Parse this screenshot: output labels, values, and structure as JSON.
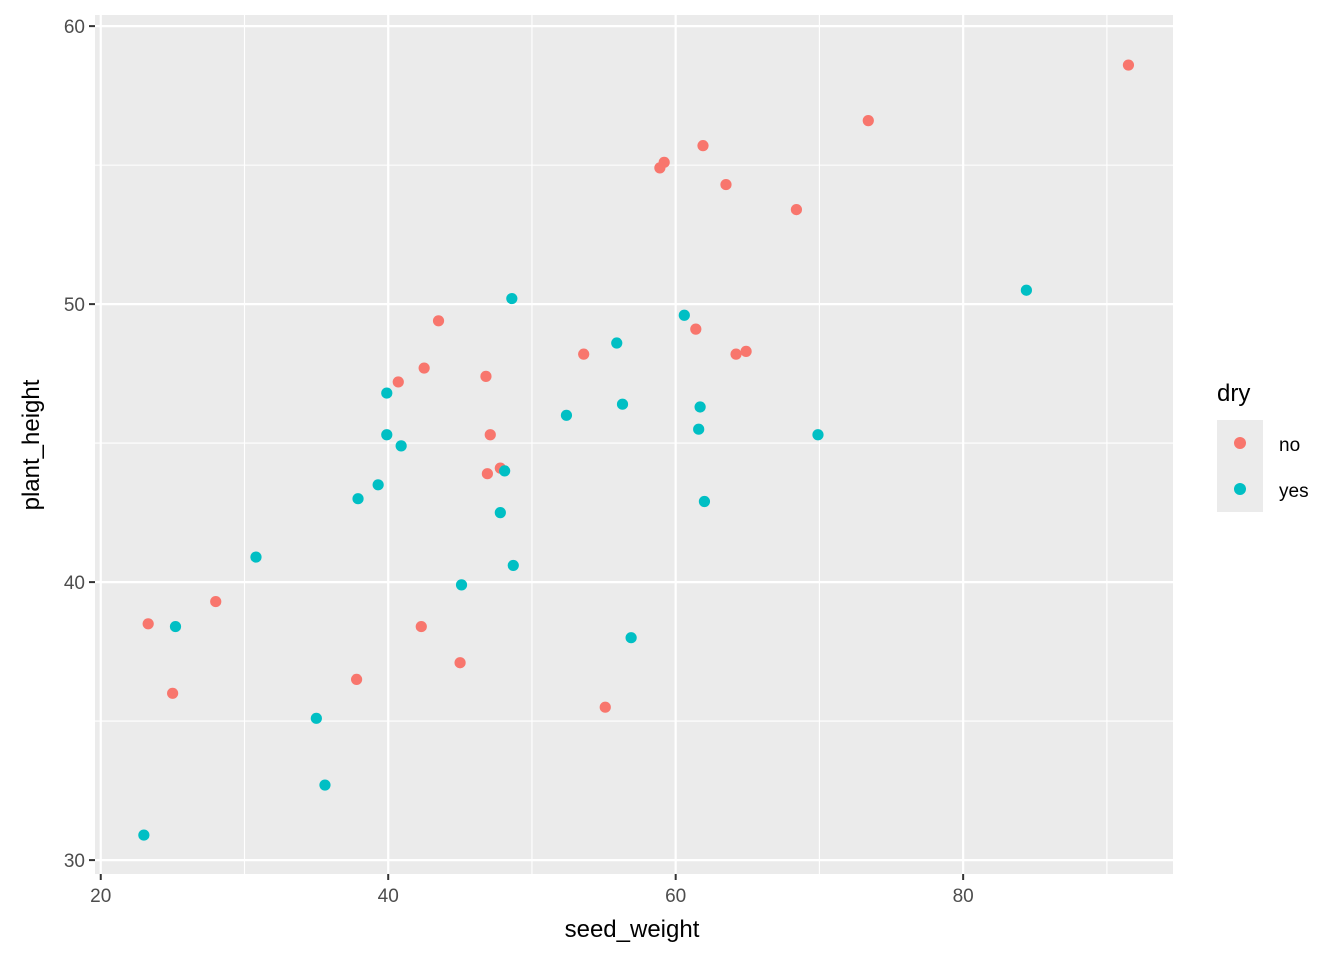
{
  "chart_data": {
    "type": "scatter",
    "xlabel": "seed_weight",
    "ylabel": "plant_height",
    "xlim": [
      19.6,
      94.6
    ],
    "ylim": [
      29.5,
      60.4
    ],
    "x_ticks": [
      20,
      40,
      60,
      80
    ],
    "y_ticks": [
      30,
      40,
      50,
      60
    ],
    "x_tick_labels": [
      "20",
      "40",
      "60",
      "80"
    ],
    "y_tick_labels": [
      "30",
      "40",
      "50",
      "60"
    ],
    "grid": true,
    "legend": {
      "title": "dry",
      "placement": "right",
      "entries": [
        "no",
        "yes"
      ]
    },
    "colors": {
      "no": "#F8766D",
      "yes": "#00BFC4",
      "panel": "#EBEBEB",
      "grid": "#FFFFFF"
    },
    "series": [
      {
        "name": "no",
        "points": [
          [
            91.5,
            58.6
          ],
          [
            73.4,
            56.6
          ],
          [
            61.9,
            55.7
          ],
          [
            59.2,
            55.1
          ],
          [
            58.9,
            54.9
          ],
          [
            63.5,
            54.3
          ],
          [
            68.4,
            53.4
          ],
          [
            43.5,
            49.4
          ],
          [
            61.4,
            49.1
          ],
          [
            53.6,
            48.2
          ],
          [
            64.2,
            48.2
          ],
          [
            64.9,
            48.3
          ],
          [
            42.5,
            47.7
          ],
          [
            40.7,
            47.2
          ],
          [
            46.8,
            47.4
          ],
          [
            47.1,
            45.3
          ],
          [
            47.8,
            44.1
          ],
          [
            46.9,
            43.9
          ],
          [
            28.0,
            39.3
          ],
          [
            23.3,
            38.5
          ],
          [
            42.3,
            38.4
          ],
          [
            45.0,
            37.1
          ],
          [
            37.8,
            36.5
          ],
          [
            25.0,
            36.0
          ],
          [
            55.1,
            35.5
          ]
        ]
      },
      {
        "name": "yes",
        "points": [
          [
            84.4,
            50.5
          ],
          [
            48.6,
            50.2
          ],
          [
            60.6,
            49.6
          ],
          [
            55.9,
            48.6
          ],
          [
            39.9,
            46.8
          ],
          [
            56.3,
            46.4
          ],
          [
            61.7,
            46.3
          ],
          [
            52.4,
            46.0
          ],
          [
            61.6,
            45.5
          ],
          [
            69.9,
            45.3
          ],
          [
            39.9,
            45.3
          ],
          [
            40.9,
            44.9
          ],
          [
            48.1,
            44.0
          ],
          [
            39.3,
            43.5
          ],
          [
            37.9,
            43.0
          ],
          [
            62.0,
            42.9
          ],
          [
            47.8,
            42.5
          ],
          [
            30.8,
            40.9
          ],
          [
            48.7,
            40.6
          ],
          [
            45.1,
            39.9
          ],
          [
            25.2,
            38.4
          ],
          [
            56.9,
            38.0
          ],
          [
            35.0,
            35.1
          ],
          [
            35.6,
            32.7
          ],
          [
            23.0,
            30.9
          ]
        ]
      }
    ]
  }
}
